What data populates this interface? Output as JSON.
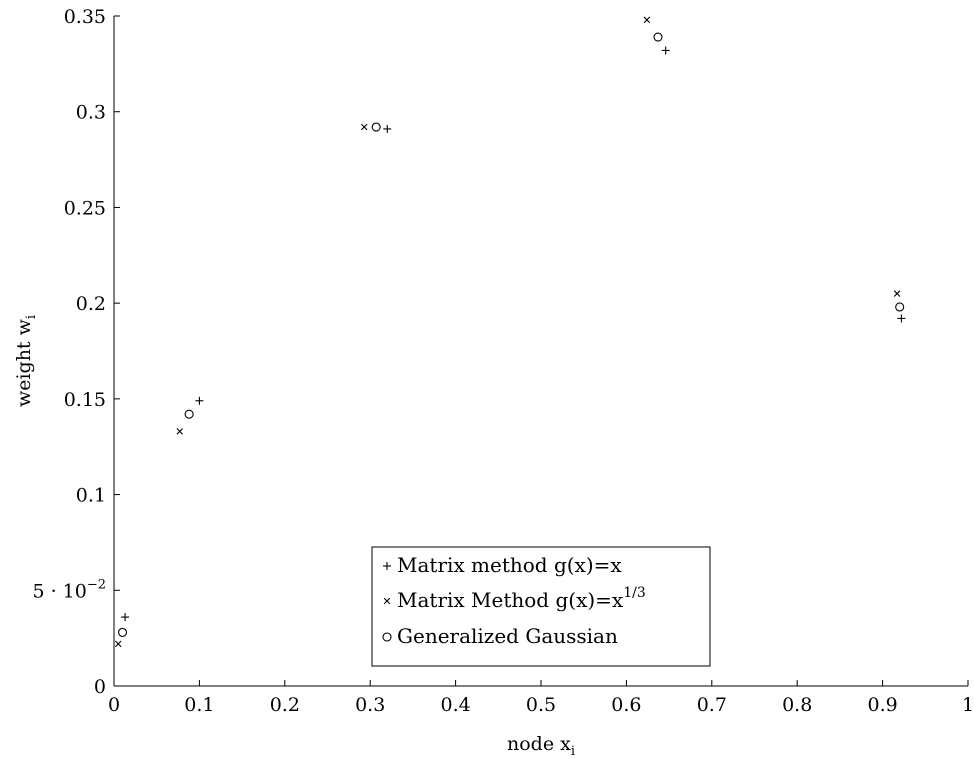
{
  "chart_data": {
    "type": "scatter",
    "title": "",
    "xlabel": "node",
    "xlabel_sub": "i",
    "xlabel_var": "x",
    "ylabel": "weight",
    "ylabel_var": "w",
    "ylabel_sub": "i",
    "xlim": [
      0,
      1
    ],
    "ylim": [
      0,
      0.35
    ],
    "x_ticks": [
      0,
      0.1,
      0.2,
      0.3,
      0.4,
      0.5,
      0.6,
      0.7,
      0.8,
      0.9,
      1
    ],
    "x_tick_labels": [
      "0",
      "0.1",
      "0.2",
      "0.3",
      "0.4",
      "0.5",
      "0.6",
      "0.7",
      "0.8",
      "0.9",
      "1"
    ],
    "y_ticks": [
      0,
      0.05,
      0.1,
      0.15,
      0.2,
      0.25,
      0.3,
      0.35
    ],
    "y_tick_labels": [
      "0",
      "5 · 10",
      "0.1",
      "0.15",
      "0.2",
      "0.25",
      "0.3",
      "0.35"
    ],
    "y_tick_exponent": "−2",
    "grid": false,
    "legend_position": "bottom-center",
    "series": [
      {
        "name": "Matrix method g(x)=x",
        "marker": "plus",
        "x": [
          0.013,
          0.1,
          0.32,
          0.646,
          0.922
        ],
        "y": [
          0.036,
          0.149,
          0.291,
          0.332,
          0.192
        ]
      },
      {
        "name": "Matrix Method g(x)=x",
        "name_superscript": "1/3",
        "marker": "cross",
        "x": [
          0.005,
          0.077,
          0.293,
          0.624,
          0.917
        ],
        "y": [
          0.022,
          0.133,
          0.292,
          0.348,
          0.205
        ]
      },
      {
        "name": "Generalized Gaussian",
        "marker": "circle",
        "x": [
          0.01,
          0.088,
          0.307,
          0.637,
          0.92
        ],
        "y": [
          0.028,
          0.142,
          0.292,
          0.339,
          0.198
        ]
      }
    ]
  }
}
